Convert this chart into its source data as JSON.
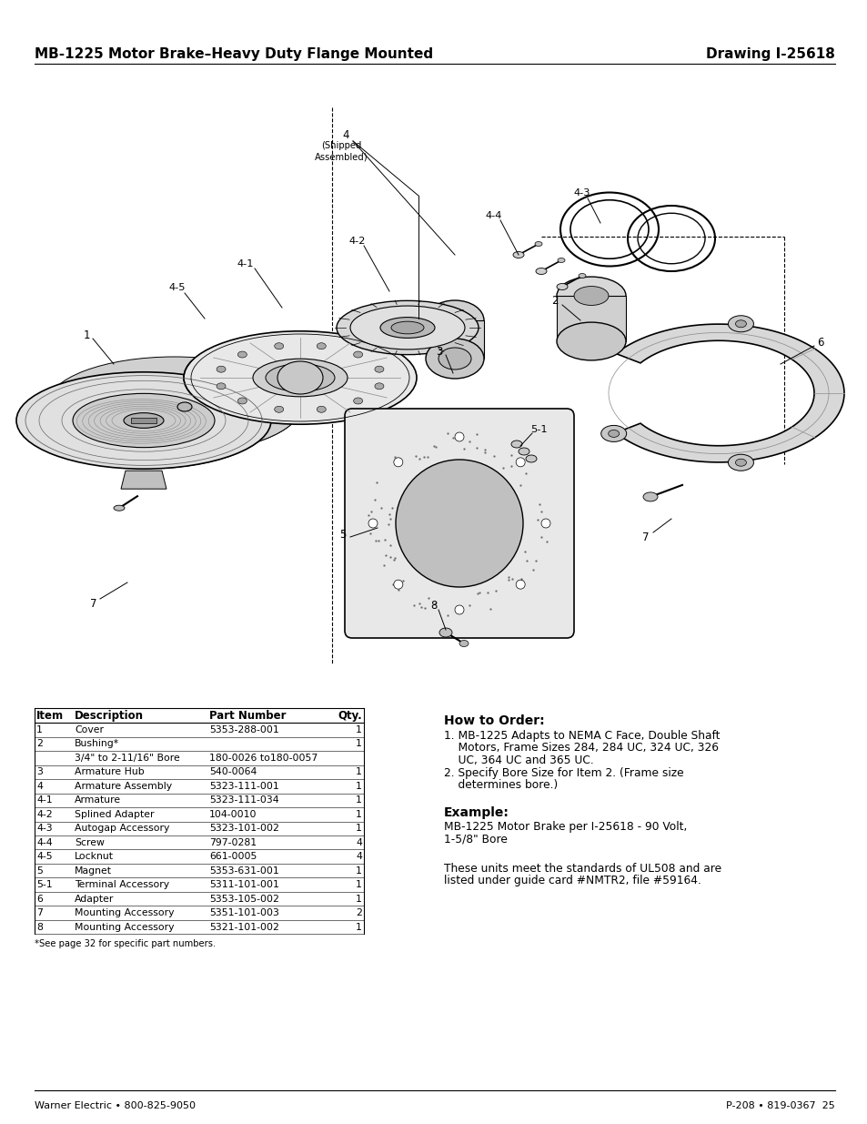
{
  "title_left": "MB-1225 Motor Brake–Heavy Duty Flange Mounted",
  "title_right": "Drawing I-25618",
  "table_headers": [
    "Item",
    "Description",
    "Part Number",
    "Qty."
  ],
  "table_rows": [
    [
      "1",
      "Cover",
      "5353-288-001",
      "1"
    ],
    [
      "2",
      "Bushing*",
      "",
      "1"
    ],
    [
      "",
      "3/4\" to 2-11/16\" Bore",
      "180-0026 to180-0057",
      ""
    ],
    [
      "3",
      "Armature Hub",
      "540-0064",
      "1"
    ],
    [
      "4",
      "Armature Assembly",
      "5323-111-001",
      "1"
    ],
    [
      "4-1",
      "Armature",
      "5323-111-034",
      "1"
    ],
    [
      "4-2",
      "Splined Adapter",
      "104-0010",
      "1"
    ],
    [
      "4-3",
      "Autogap Accessory",
      "5323-101-002",
      "1"
    ],
    [
      "4-4",
      "Screw",
      "797-0281",
      "4"
    ],
    [
      "4-5",
      "Locknut",
      "661-0005",
      "4"
    ],
    [
      "5",
      "Magnet",
      "5353-631-001",
      "1"
    ],
    [
      "5-1",
      "Terminal Accessory",
      "5311-101-001",
      "1"
    ],
    [
      "6",
      "Adapter",
      "5353-105-002",
      "1"
    ],
    [
      "7",
      "Mounting Accessory",
      "5351-101-003",
      "2"
    ],
    [
      "8",
      "Mounting Accessory",
      "5321-101-002",
      "1"
    ]
  ],
  "footnote": "*See page 32 for specific part numbers.",
  "how_to_order_title": "How to Order:",
  "how_to_order_lines": [
    "1. MB-1225 Adapts to NEMA C Face, Double Shaft",
    "    Motors, Frame Sizes 284, 284 UC, 324 UC, 326",
    "    UC, 364 UC and 365 UC.",
    "2. Specify Bore Size for Item 2. (Frame size",
    "    determines bore.)"
  ],
  "example_title": "Example:",
  "example_lines": [
    "MB-1225 Motor Brake per I-25618 - 90 Volt,",
    "1-5/8\" Bore"
  ],
  "ul_lines": [
    "These units meet the standards of UL508 and are",
    "listed under guide card #NMTR2, file #59164."
  ],
  "footer_left": "Warner Electric • 800-825-9050",
  "footer_right": "P-208 • 819-0367  25"
}
